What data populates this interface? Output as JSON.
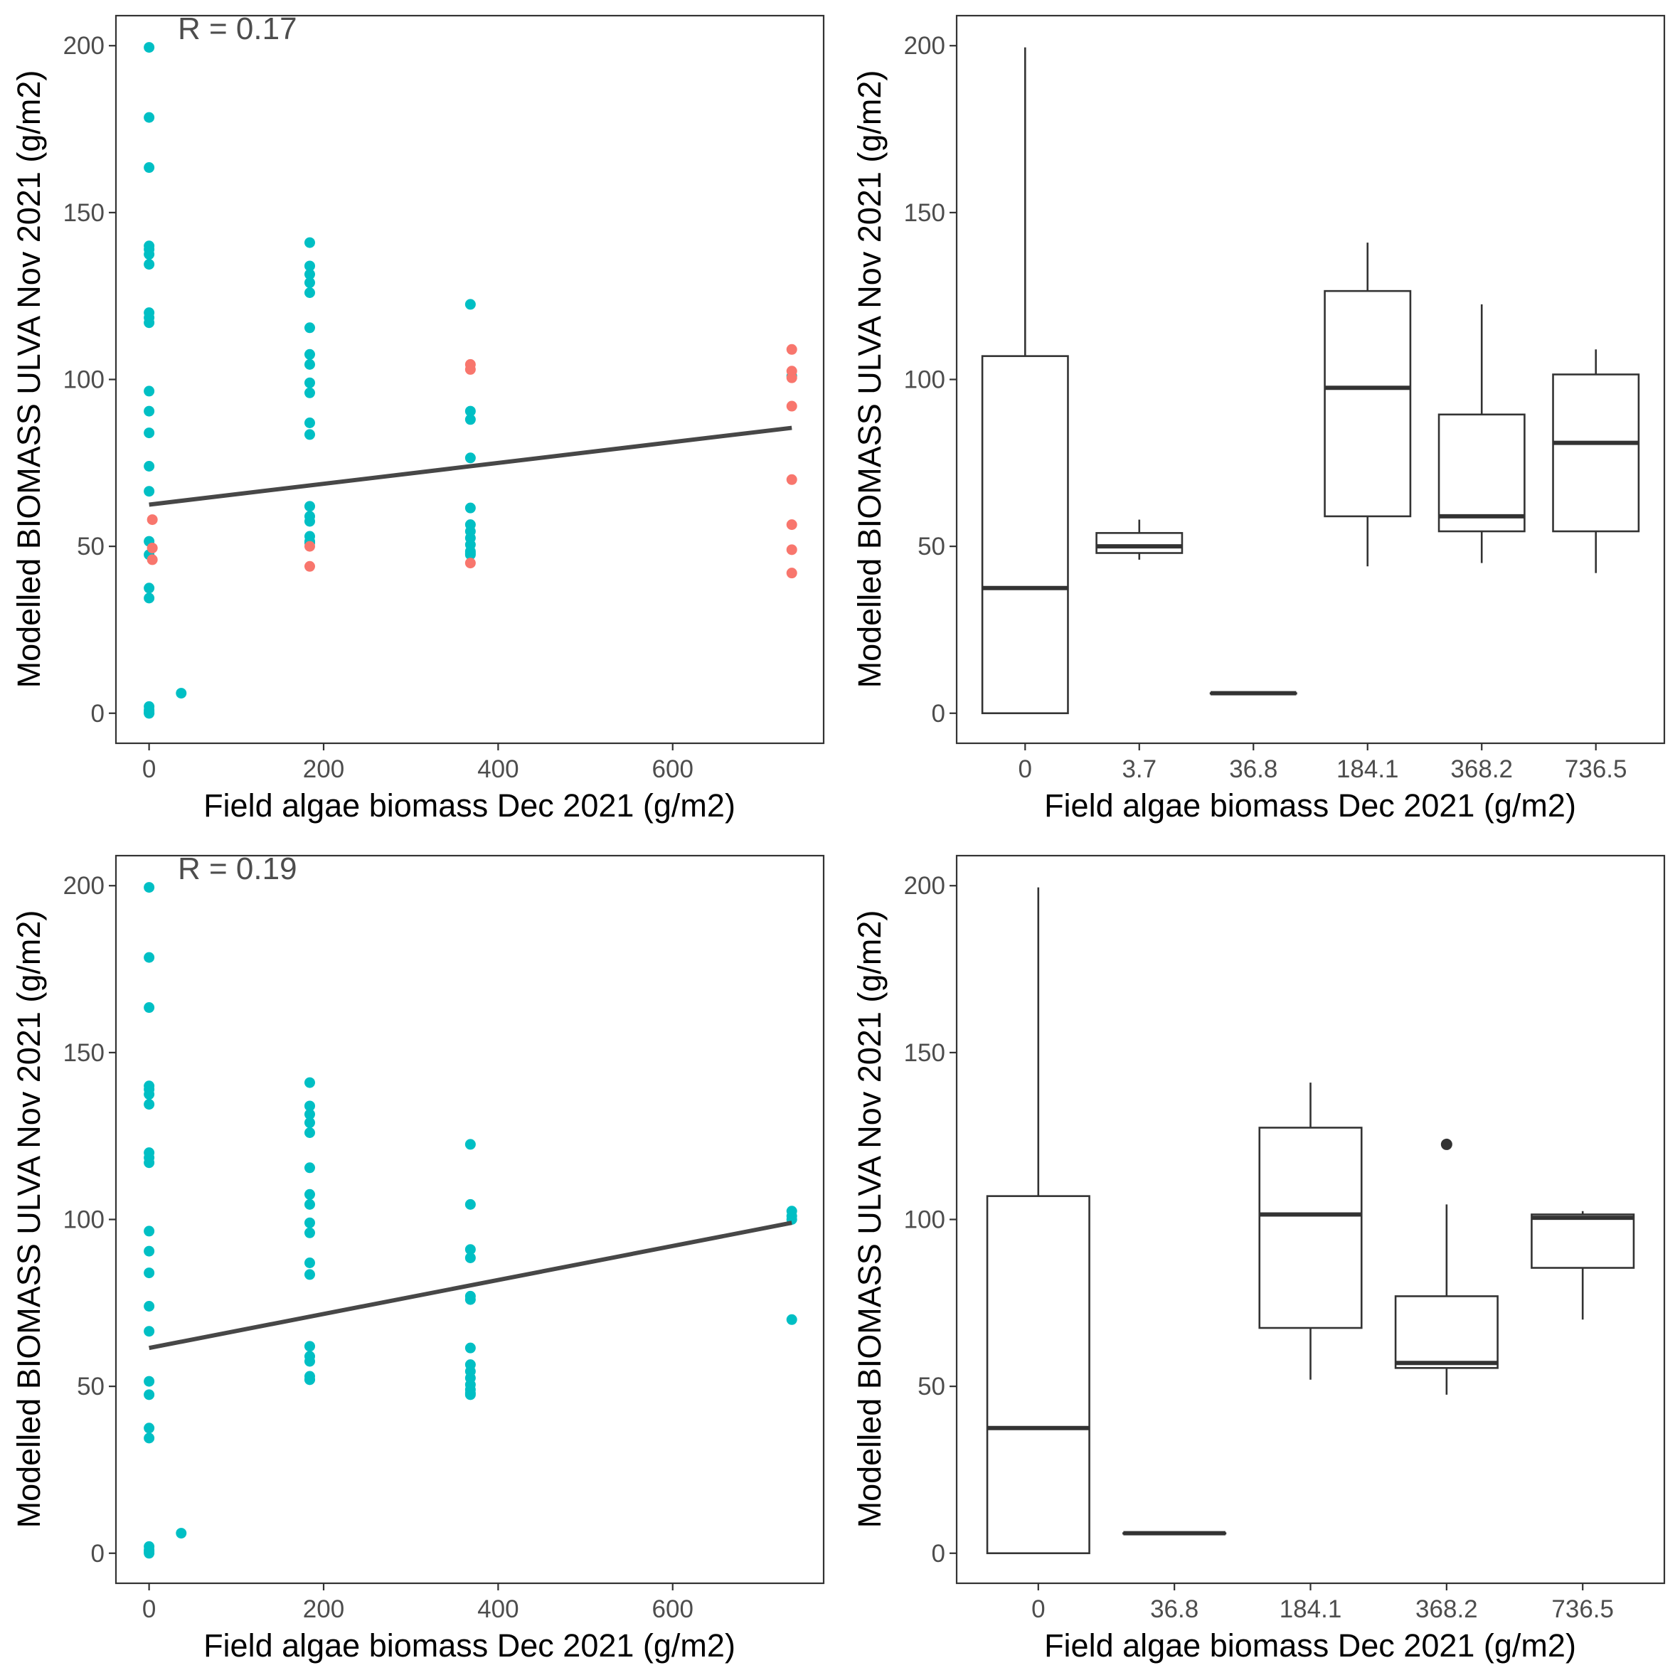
{
  "colors": {
    "teal": "#00BFC4",
    "salmon": "#F8766D",
    "line": "#474747",
    "box": "#333333",
    "frame": "#333333",
    "tick_text": "#4d4d4d"
  },
  "chart_data": [
    {
      "id": "scatter_top",
      "type": "scatter",
      "title": "",
      "xlabel": "Field algae biomass Dec 2021 (g/m2)",
      "ylabel": "Modelled BIOMASS ULVA Nov 2021 (g/m2)",
      "annotation": "R = 0.17",
      "xlim": [
        -38,
        773
      ],
      "ylim": [
        -9,
        209
      ],
      "x_ticks": [
        0,
        200,
        400,
        600
      ],
      "x_tick_labels": [
        "0",
        "200",
        "400",
        "600"
      ],
      "y_ticks": [
        0,
        50,
        100,
        150,
        200
      ],
      "y_tick_labels": [
        "0",
        "50",
        "100",
        "150",
        "200"
      ],
      "series": [
        {
          "name": "teal",
          "color_key": "teal",
          "x": [
            0,
            0,
            0,
            0,
            0,
            0,
            0,
            0,
            0,
            0,
            0,
            0,
            0,
            0,
            0,
            0,
            0,
            0,
            0,
            0,
            0,
            0,
            0,
            0,
            36.8,
            184.1,
            184.1,
            184.1,
            184.1,
            184.1,
            184.1,
            184.1,
            184.1,
            184.1,
            184.1,
            184.1,
            184.1,
            184.1,
            184.1,
            184.1,
            184.1,
            184.1,
            184.1,
            368.2,
            368.2,
            368.2,
            368.2,
            368.2,
            368.2,
            368.2,
            368.2,
            368.2,
            368.2,
            368.2,
            368.2,
            736.5
          ],
          "y": [
            199.5,
            178.5,
            163.5,
            140,
            139,
            137.5,
            134.5,
            120,
            118.5,
            117,
            96.5,
            90.5,
            84,
            74,
            66.5,
            51.5,
            47.5,
            37.5,
            34.5,
            2,
            1,
            0.5,
            0,
            0,
            6,
            141,
            134,
            131.5,
            129,
            126,
            115.5,
            107.5,
            104.5,
            99,
            96,
            87,
            83.5,
            62,
            59,
            57.5,
            53,
            51.5,
            51,
            122.5,
            90.5,
            88,
            76.5,
            61.5,
            56.5,
            54.5,
            52.5,
            50.5,
            48.5,
            48,
            47.5,
            101
          ]
        },
        {
          "name": "salmon",
          "color_key": "salmon",
          "x": [
            3.7,
            3.7,
            3.7,
            184.1,
            184.1,
            368.2,
            368.2,
            368.2,
            736.5,
            736.5,
            736.5,
            736.5,
            736.5,
            736.5,
            736.5,
            736.5
          ],
          "y": [
            58,
            49.5,
            46,
            50,
            44,
            104.5,
            103,
            45,
            109,
            102.5,
            100.5,
            92,
            70,
            56.5,
            49,
            42
          ]
        }
      ],
      "trend_line": {
        "x": [
          0,
          736.5
        ],
        "y": [
          62.5,
          85.5
        ]
      }
    },
    {
      "id": "box_top",
      "type": "box",
      "title": "",
      "xlabel": "Field algae biomass Dec 2021 (g/m2)",
      "ylabel": "Modelled BIOMASS ULVA Nov 2021 (g/m2)",
      "ylim": [
        -9,
        209
      ],
      "y_ticks": [
        0,
        50,
        100,
        150,
        200
      ],
      "y_tick_labels": [
        "0",
        "50",
        "100",
        "150",
        "200"
      ],
      "categories": [
        "0",
        "3.7",
        "36.8",
        "184.1",
        "368.2",
        "736.5"
      ],
      "boxes": [
        {
          "whisker_low": 0,
          "q1": 0,
          "median": 37.5,
          "q3": 107,
          "whisker_high": 199.5,
          "outliers": []
        },
        {
          "whisker_low": 46,
          "q1": 48,
          "median": 50,
          "q3": 54,
          "whisker_high": 58,
          "outliers": []
        },
        {
          "whisker_low": 6,
          "q1": 6,
          "median": 6,
          "q3": 6,
          "whisker_high": 6,
          "outliers": []
        },
        {
          "whisker_low": 44,
          "q1": 59,
          "median": 97.5,
          "q3": 126.5,
          "whisker_high": 141,
          "outliers": []
        },
        {
          "whisker_low": 45,
          "q1": 54.5,
          "median": 59,
          "q3": 89.5,
          "whisker_high": 122.5,
          "outliers": []
        },
        {
          "whisker_low": 42,
          "q1": 54.5,
          "median": 81,
          "q3": 101.5,
          "whisker_high": 109,
          "outliers": []
        }
      ]
    },
    {
      "id": "scatter_bottom",
      "type": "scatter",
      "title": "",
      "xlabel": "Field algae biomass Dec 2021 (g/m2)",
      "ylabel": "Modelled BIOMASS ULVA Nov 2021 (g/m2)",
      "annotation": "R = 0.19",
      "xlim": [
        -38,
        773
      ],
      "ylim": [
        -9,
        209
      ],
      "x_ticks": [
        0,
        200,
        400,
        600
      ],
      "x_tick_labels": [
        "0",
        "200",
        "400",
        "600"
      ],
      "y_ticks": [
        0,
        50,
        100,
        150,
        200
      ],
      "y_tick_labels": [
        "0",
        "50",
        "100",
        "150",
        "200"
      ],
      "series": [
        {
          "name": "teal",
          "color_key": "teal",
          "x": [
            0,
            0,
            0,
            0,
            0,
            0,
            0,
            0,
            0,
            0,
            0,
            0,
            0,
            0,
            0,
            0,
            0,
            0,
            0,
            0,
            0,
            0,
            0,
            36.8,
            184.1,
            184.1,
            184.1,
            184.1,
            184.1,
            184.1,
            184.1,
            184.1,
            184.1,
            184.1,
            184.1,
            184.1,
            184.1,
            184.1,
            184.1,
            184.1,
            184.1,
            184.1,
            368.2,
            368.2,
            368.2,
            368.2,
            368.2,
            368.2,
            368.2,
            368.2,
            368.2,
            368.2,
            368.2,
            368.2,
            368.2,
            368.2,
            736.5,
            736.5,
            736.5,
            736.5
          ],
          "y": [
            199.5,
            178.5,
            163.5,
            140,
            139,
            137.5,
            134.5,
            120,
            118.5,
            117,
            96.5,
            90.5,
            84,
            74,
            66.5,
            51.5,
            47.5,
            37.5,
            34.5,
            2,
            1,
            0.5,
            0,
            6,
            141,
            134,
            131.5,
            129,
            126,
            115.5,
            107.5,
            104.5,
            99,
            96,
            87,
            83.5,
            62,
            59,
            57.5,
            53,
            52,
            52,
            122.5,
            104.5,
            91,
            88.5,
            77,
            76,
            61.5,
            56.5,
            54.5,
            52.5,
            50.5,
            49,
            48,
            47.5,
            102.5,
            101,
            100,
            70
          ]
        }
      ],
      "trend_line": {
        "x": [
          0,
          736.5
        ],
        "y": [
          61.5,
          99
        ]
      }
    },
    {
      "id": "box_bottom",
      "type": "box",
      "title": "",
      "xlabel": "Field algae biomass Dec 2021 (g/m2)",
      "ylabel": "Modelled BIOMASS ULVA Nov 2021 (g/m2)",
      "ylim": [
        -9,
        209
      ],
      "y_ticks": [
        0,
        50,
        100,
        150,
        200
      ],
      "y_tick_labels": [
        "0",
        "50",
        "100",
        "150",
        "200"
      ],
      "categories": [
        "0",
        "36.8",
        "184.1",
        "368.2",
        "736.5"
      ],
      "boxes": [
        {
          "whisker_low": 0,
          "q1": 0,
          "median": 37.5,
          "q3": 107,
          "whisker_high": 199.5,
          "outliers": []
        },
        {
          "whisker_low": 6,
          "q1": 6,
          "median": 6,
          "q3": 6,
          "whisker_high": 6,
          "outliers": []
        },
        {
          "whisker_low": 52,
          "q1": 67.5,
          "median": 101.5,
          "q3": 127.5,
          "whisker_high": 141,
          "outliers": []
        },
        {
          "whisker_low": 47.5,
          "q1": 55.5,
          "median": 57,
          "q3": 77,
          "whisker_high": 104.5,
          "outliers": [
            122.5
          ]
        },
        {
          "whisker_low": 70,
          "q1": 85.5,
          "median": 100.5,
          "q3": 101.5,
          "whisker_high": 102.5,
          "outliers": []
        }
      ]
    }
  ]
}
